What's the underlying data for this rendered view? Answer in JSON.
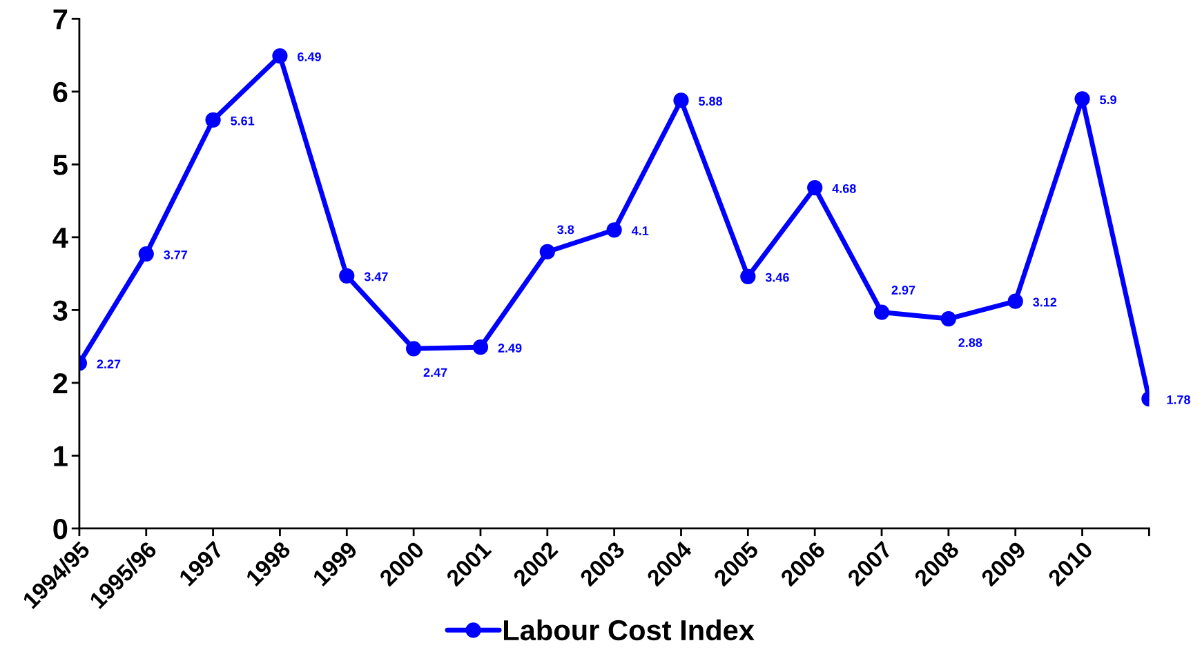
{
  "chart_data": {
    "type": "line",
    "categories": [
      "1994/95",
      "1995/96",
      "1997",
      "1998",
      "1999",
      "2000",
      "2001",
      "2002",
      "2003",
      "2004",
      "2005",
      "2006",
      "2007",
      "2008",
      "2009",
      "2010",
      null
    ],
    "series": [
      {
        "name": "Labour Cost Index",
        "color": "#0000ff",
        "values": [
          2.27,
          3.77,
          5.61,
          6.49,
          3.47,
          2.47,
          2.49,
          3.8,
          4.1,
          5.88,
          3.46,
          4.68,
          2.97,
          2.88,
          3.12,
          5.9,
          1.78
        ]
      }
    ],
    "ylim": [
      0,
      7
    ],
    "yticks": [
      0,
      1,
      2,
      3,
      4,
      5,
      6,
      7
    ],
    "data_labels": true,
    "legend": "bottom",
    "marker": "circle",
    "line_style": "solid",
    "grid": false
  }
}
